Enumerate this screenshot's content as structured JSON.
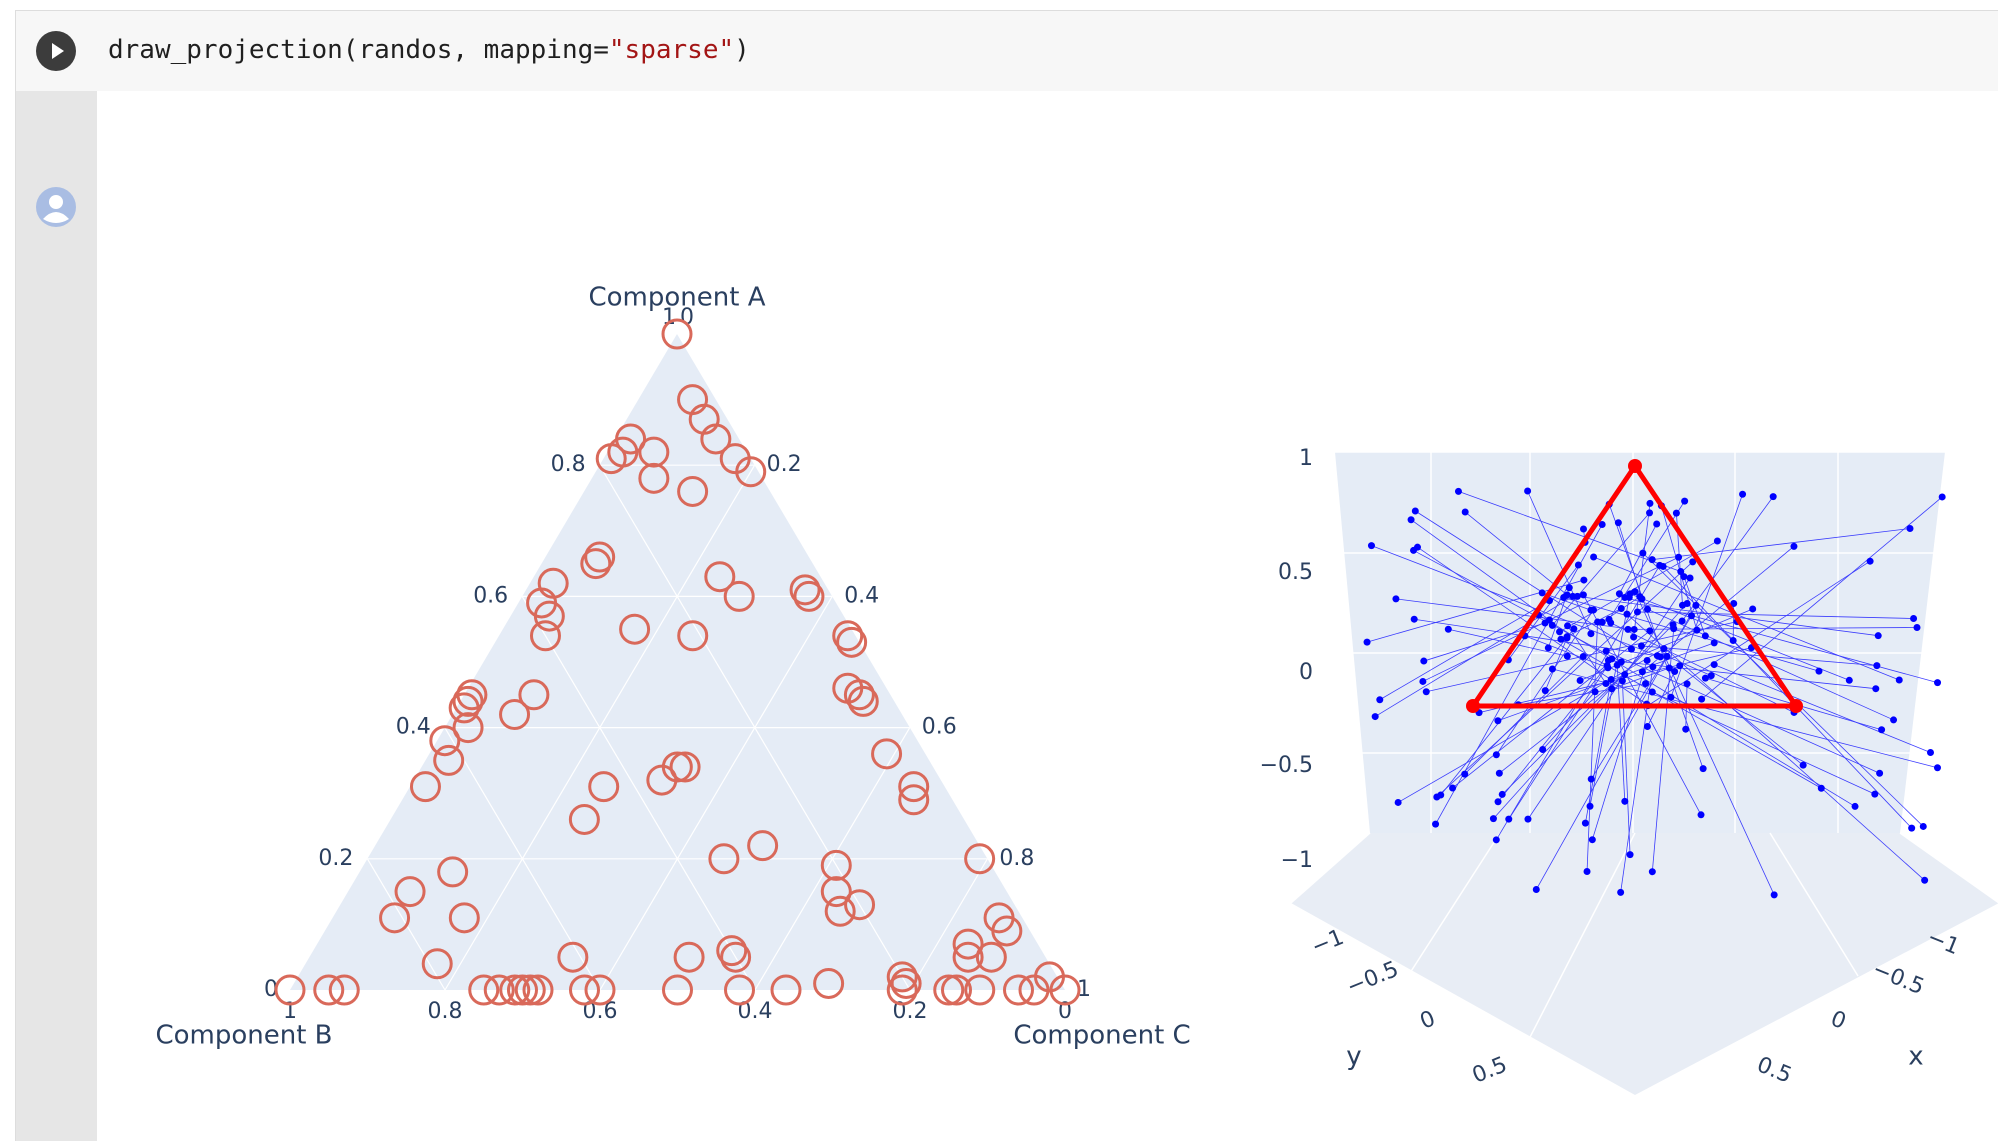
{
  "cell": {
    "code_fn": "draw_projection(randos, mapping=",
    "code_str": "\"sparse\"",
    "code_end": ")"
  },
  "icons": {
    "run": "play-icon",
    "avatar": "user-avatar-icon"
  },
  "colors": {
    "ternary_bg": "#e5ecf6",
    "ternary_marker": "#d9695a",
    "scatter_point": "#0000ff",
    "triangle_edge": "#ff0000",
    "axis_text": "#2a3f5f"
  },
  "chart_data": [
    {
      "type": "scatter",
      "projection": "ternary",
      "axes": {
        "a": {
          "title": "Component A",
          "ticks": [
            "0.2",
            "0.4",
            "0.6",
            "0.8",
            "1"
          ],
          "range": [
            0,
            1
          ]
        },
        "b": {
          "title": "Component B",
          "ticks": [
            "0.2",
            "0.4",
            "0.6",
            "0.8",
            "1"
          ],
          "range": [
            0,
            1
          ]
        },
        "c": {
          "title": "Component C",
          "ticks": [
            "0.2",
            "0.4",
            "0.6",
            "0.8",
            "1"
          ],
          "range": [
            0,
            1
          ]
        }
      },
      "marker": "open-circle",
      "points": [
        [
          1,
          0,
          0
        ],
        [
          0.9,
          0.03,
          0.07
        ],
        [
          0.87,
          0.03,
          0.1
        ],
        [
          0.84,
          0.03,
          0.13
        ],
        [
          0.81,
          0.02,
          0.17
        ],
        [
          0.79,
          0.01,
          0.2
        ],
        [
          0.84,
          0.14,
          0.02
        ],
        [
          0.82,
          0.16,
          0.02
        ],
        [
          0.81,
          0.18,
          0.01
        ],
        [
          0.82,
          0.12,
          0.06
        ],
        [
          0.78,
          0.14,
          0.08
        ],
        [
          0.76,
          0.1,
          0.14
        ],
        [
          0.66,
          0.27,
          0.07
        ],
        [
          0.65,
          0.28,
          0.07
        ],
        [
          0.63,
          0.13,
          0.24
        ],
        [
          0.6,
          0.12,
          0.28
        ],
        [
          0.62,
          0.35,
          0.03
        ],
        [
          0.59,
          0.38,
          0.03
        ],
        [
          0.57,
          0.38,
          0.05
        ],
        [
          0.54,
          0.4,
          0.06
        ],
        [
          0.61,
          0.03,
          0.36
        ],
        [
          0.6,
          0.03,
          0.37
        ],
        [
          0.55,
          0.28,
          0.17
        ],
        [
          0.54,
          0.21,
          0.25
        ],
        [
          0.54,
          0.01,
          0.45
        ],
        [
          0.53,
          0.01,
          0.46
        ],
        [
          0.45,
          0.54,
          0.01
        ],
        [
          0.44,
          0.55,
          0.01
        ],
        [
          0.43,
          0.56,
          0.01
        ],
        [
          0.4,
          0.57,
          0.03
        ],
        [
          0.38,
          0.61,
          0.01
        ],
        [
          0.35,
          0.62,
          0.03
        ],
        [
          0.31,
          0.67,
          0.02
        ],
        [
          0.42,
          0.5,
          0.08
        ],
        [
          0.45,
          0.46,
          0.09
        ],
        [
          0.46,
          0.05,
          0.49
        ],
        [
          0.45,
          0.04,
          0.51
        ],
        [
          0.44,
          0.04,
          0.52
        ],
        [
          0.36,
          0.05,
          0.59
        ],
        [
          0.31,
          0.04,
          0.65
        ],
        [
          0.29,
          0.05,
          0.66
        ],
        [
          0.34,
          0.32,
          0.34
        ],
        [
          0.34,
          0.33,
          0.33
        ],
        [
          0.32,
          0.36,
          0.32
        ],
        [
          0.31,
          0.44,
          0.25
        ],
        [
          0.26,
          0.49,
          0.25
        ],
        [
          0.2,
          0.01,
          0.79
        ],
        [
          0.18,
          0.7,
          0.12
        ],
        [
          0.15,
          0.77,
          0.08
        ],
        [
          0.11,
          0.72,
          0.17
        ],
        [
          0.11,
          0.81,
          0.08
        ],
        [
          0.05,
          0.61,
          0.34
        ],
        [
          0.04,
          0.79,
          0.17
        ],
        [
          0.19,
          0.2,
          0.61
        ],
        [
          0.2,
          0.34,
          0.46
        ],
        [
          0.22,
          0.28,
          0.5
        ],
        [
          0.15,
          0.22,
          0.63
        ],
        [
          0.13,
          0.2,
          0.67
        ],
        [
          0.12,
          0.23,
          0.65
        ],
        [
          0.05,
          0.4,
          0.55
        ],
        [
          0.06,
          0.4,
          0.54
        ],
        [
          0.05,
          0.46,
          0.49
        ],
        [
          0.07,
          0.09,
          0.84
        ],
        [
          0.05,
          0.1,
          0.85
        ],
        [
          0.11,
          0.03,
          0.86
        ],
        [
          0.09,
          0.03,
          0.88
        ],
        [
          0.05,
          0.07,
          0.88
        ],
        [
          0.02,
          0.2,
          0.78
        ],
        [
          0.01,
          0.3,
          0.69
        ],
        [
          0.0,
          0.6,
          0.4
        ],
        [
          0.0,
          0.62,
          0.38
        ],
        [
          0.0,
          0.5,
          0.5
        ],
        [
          0.0,
          0.42,
          0.58
        ],
        [
          0.0,
          0.36,
          0.64
        ],
        [
          0.0,
          0.21,
          0.79
        ],
        [
          0.01,
          0.2,
          0.79
        ],
        [
          0.0,
          0.15,
          0.85
        ],
        [
          0.0,
          0.14,
          0.86
        ],
        [
          0.0,
          0.11,
          0.89
        ],
        [
          0.0,
          0.06,
          0.94
        ],
        [
          0.0,
          0.04,
          0.96
        ],
        [
          0.02,
          0.01,
          0.97
        ],
        [
          0.0,
          0.0,
          1
        ],
        [
          0.0,
          1,
          0
        ],
        [
          0.0,
          0.95,
          0.05
        ],
        [
          0.0,
          0.93,
          0.07
        ],
        [
          0.0,
          0.75,
          0.25
        ],
        [
          0.0,
          0.73,
          0.27
        ],
        [
          0.0,
          0.71,
          0.29
        ],
        [
          0.0,
          0.7,
          0.3
        ],
        [
          0.0,
          0.69,
          0.31
        ],
        [
          0.0,
          0.68,
          0.32
        ]
      ]
    },
    {
      "type": "scatter",
      "projection": "3d",
      "axes": {
        "x": {
          "title": "x",
          "ticks": [
            "−1",
            "−0.5",
            "0",
            "0.5"
          ],
          "range": [
            -1,
            1
          ]
        },
        "y": {
          "title": "y",
          "ticks": [
            "−1",
            "−0.5",
            "0",
            "0.5"
          ],
          "range": [
            -1,
            1
          ]
        },
        "z": {
          "ticks": [
            "−1",
            "−0.5",
            "0",
            "0.5",
            "1"
          ],
          "range": [
            -1,
            1
          ]
        }
      },
      "triangle_vertices": [
        [
          0,
          0,
          1
        ],
        [
          -0.87,
          -0.5,
          0
        ],
        [
          0.87,
          -0.5,
          0
        ]
      ],
      "point_count": 100,
      "projection_lines": true
    }
  ]
}
